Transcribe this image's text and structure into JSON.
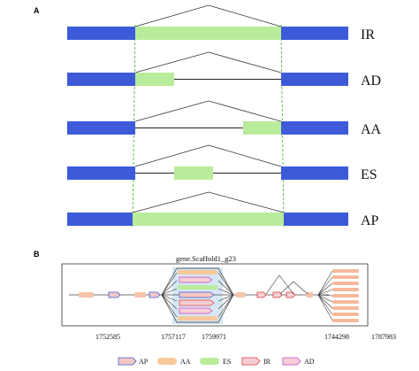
{
  "panel_a": {
    "letter": "A",
    "rows": [
      {
        "label": "IR"
      },
      {
        "label": "AD"
      },
      {
        "label": "AA"
      },
      {
        "label": "ES"
      },
      {
        "label": "AP"
      }
    ]
  },
  "panel_b": {
    "letter": "B",
    "gene_name": "gene.Scaffold1_g23",
    "coordinates": [
      "1752585",
      "1757117",
      "1759971",
      "1744298",
      "1787983"
    ]
  },
  "legend": [
    {
      "label": "AP",
      "shape": "arrow-box",
      "fill": "#f4c7c3",
      "stroke": "#3d5bd9"
    },
    {
      "label": "AA",
      "shape": "rounded-bar",
      "fill": "#f5c99a",
      "stroke": "#f5c99a"
    },
    {
      "label": "ES",
      "shape": "rounded-bar",
      "fill": "#b9ec9a",
      "stroke": "#b9ec9a"
    },
    {
      "label": "IR",
      "shape": "arrow-box",
      "fill": "#f6cfd6",
      "stroke": "#e03b3b"
    },
    {
      "label": "AD",
      "shape": "arrow-box",
      "fill": "#f6cfd6",
      "stroke": "#c54ac8"
    }
  ],
  "colors": {
    "constitutive_exon": "#3d5bd9",
    "alternative_region": "#b9ec9a",
    "dashed_guide": "#4cbb3a",
    "intron_line": "#222222",
    "zoom_box": "#cfe3f2",
    "track_exon": "#f5c4a8"
  }
}
